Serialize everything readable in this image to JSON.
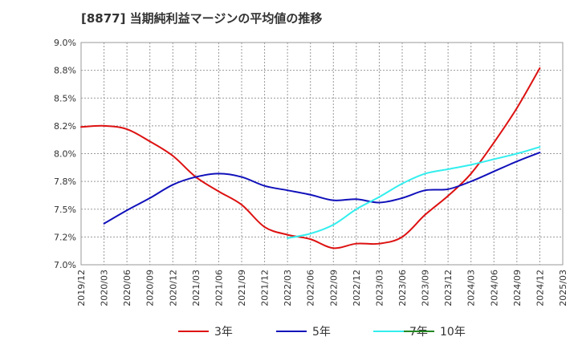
{
  "chart_data": {
    "title": "[8877]  当期純利益マージンの平均値の推移",
    "type": "line",
    "y_ticks": [
      "7.0%",
      "7.2%",
      "7.5%",
      "7.8%",
      "8.0%",
      "8.2%",
      "8.5%",
      "8.8%",
      "9.0%"
    ],
    "ylim": [
      7.0,
      9.0
    ],
    "x_ticks": [
      "2019/12",
      "2020/03",
      "2020/06",
      "2020/09",
      "2020/12",
      "2021/03",
      "2021/06",
      "2021/09",
      "2021/12",
      "2022/03",
      "2022/06",
      "2022/09",
      "2022/12",
      "2023/03",
      "2023/06",
      "2023/09",
      "2023/12",
      "2024/03",
      "2024/06",
      "2024/09",
      "2024/12",
      "2025/03"
    ],
    "grid": true,
    "legend_position": "bottom",
    "series": [
      {
        "name": "3年",
        "color": "#dd1111",
        "x": [
          "2019/12",
          "2020/03",
          "2020/06",
          "2020/09",
          "2020/12",
          "2021/03",
          "2021/06",
          "2021/09",
          "2021/12",
          "2022/03",
          "2022/06",
          "2022/09",
          "2022/12",
          "2023/03",
          "2023/06",
          "2023/09",
          "2023/12",
          "2024/03",
          "2024/06",
          "2024/09",
          "2024/12"
        ],
        "values": [
          8.24,
          8.25,
          8.22,
          8.11,
          7.98,
          7.79,
          7.66,
          7.54,
          7.34,
          7.27,
          7.23,
          7.15,
          7.19,
          7.19,
          7.25,
          7.45,
          7.62,
          7.82,
          8.1,
          8.41,
          8.77
        ]
      },
      {
        "name": "5年",
        "color": "#1111bb",
        "x": [
          "2020/03",
          "2020/06",
          "2020/09",
          "2020/12",
          "2021/03",
          "2021/06",
          "2021/09",
          "2021/12",
          "2022/03",
          "2022/06",
          "2022/09",
          "2022/12",
          "2023/03",
          "2023/06",
          "2023/09",
          "2023/12",
          "2024/03",
          "2024/06",
          "2024/09",
          "2024/12"
        ],
        "values": [
          7.37,
          7.49,
          7.6,
          7.72,
          7.79,
          7.82,
          7.79,
          7.71,
          7.67,
          7.63,
          7.58,
          7.59,
          7.56,
          7.6,
          7.67,
          7.68,
          7.75,
          7.84,
          7.93,
          8.01
        ]
      },
      {
        "name": "7年",
        "color": "#33eeee",
        "x": [
          "2022/03",
          "2022/06",
          "2022/09",
          "2022/12",
          "2023/03",
          "2023/06",
          "2023/09",
          "2023/12",
          "2024/03",
          "2024/06",
          "2024/09",
          "2024/12"
        ],
        "values": [
          7.24,
          7.28,
          7.36,
          7.5,
          7.61,
          7.73,
          7.82,
          7.86,
          7.9,
          7.95,
          8.0,
          8.06
        ]
      },
      {
        "name": "10年",
        "color": "#228822",
        "x": [],
        "values": []
      }
    ]
  }
}
